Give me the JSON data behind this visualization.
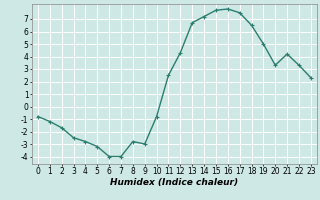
{
  "x": [
    0,
    1,
    2,
    3,
    4,
    5,
    6,
    7,
    8,
    9,
    10,
    11,
    12,
    13,
    14,
    15,
    16,
    17,
    18,
    19,
    20,
    21,
    22,
    23
  ],
  "y": [
    -0.8,
    -1.2,
    -1.7,
    -2.5,
    -2.8,
    -3.2,
    -4.0,
    -4.0,
    -2.8,
    -3.0,
    -0.8,
    2.5,
    4.3,
    6.7,
    7.2,
    7.7,
    7.8,
    7.5,
    6.5,
    5.0,
    3.3,
    4.2,
    3.3,
    2.3
  ],
  "line_color": "#2d7d6f",
  "marker": "+",
  "marker_size": 3,
  "background_color": "#cde8e5",
  "grid_color": "#ffffff",
  "xlabel": "Humidex (Indice chaleur)",
  "xlim": [
    -0.5,
    23.5
  ],
  "ylim": [
    -4.6,
    8.2
  ],
  "yticks": [
    -4,
    -3,
    -2,
    -1,
    0,
    1,
    2,
    3,
    4,
    5,
    6,
    7
  ],
  "xticks": [
    0,
    1,
    2,
    3,
    4,
    5,
    6,
    7,
    8,
    9,
    10,
    11,
    12,
    13,
    14,
    15,
    16,
    17,
    18,
    19,
    20,
    21,
    22,
    23
  ],
  "tick_fontsize": 5.5,
  "xlabel_fontsize": 6.5,
  "line_width": 1.0
}
